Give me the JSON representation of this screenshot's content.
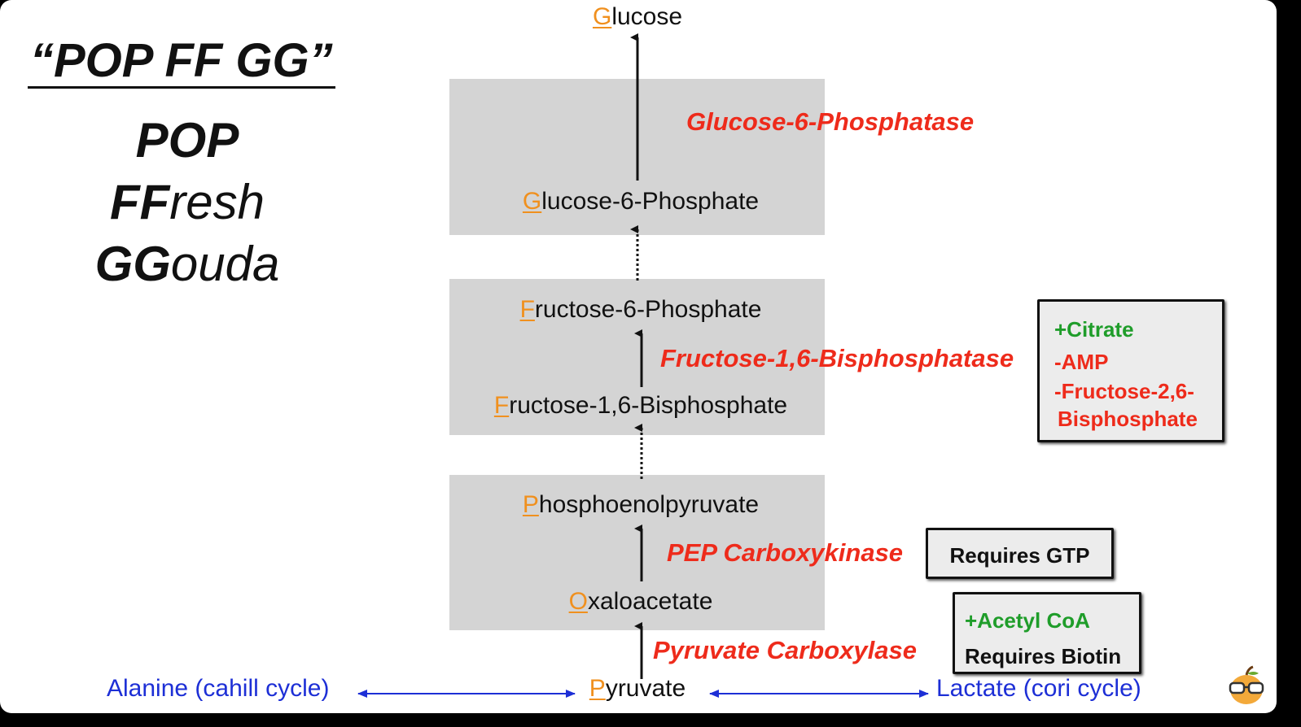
{
  "mnemonic": {
    "title": "“POP FF GG”",
    "lines": [
      {
        "bold": "POP",
        "rest": ""
      },
      {
        "bold": "FF",
        "rest": "resh"
      },
      {
        "bold": "GG",
        "rest": "ouda"
      }
    ]
  },
  "metabolites": {
    "glucose": {
      "first": "G",
      "rest": "lucose"
    },
    "g6p": {
      "first": "G",
      "rest": "lucose-6-Phosphate"
    },
    "f6p": {
      "first": "F",
      "rest": "ructose-6-Phosphate"
    },
    "f16bp": {
      "first": "F",
      "rest": "ructose-1,6-Bisphosphate"
    },
    "pep": {
      "first": "P",
      "rest": "hosphoenolpyruvate"
    },
    "oaa": {
      "first": "O",
      "rest": "xaloacetate"
    },
    "pyruvate": {
      "first": "P",
      "rest": "yruvate"
    }
  },
  "enzymes": {
    "g6pase": "Glucose-6-Phosphatase",
    "fbpase": "Fructose-1,6-Bisphosphatase",
    "pepck": "PEP Carboxykinase",
    "pc": "Pyruvate Carboxylase"
  },
  "sources": {
    "alanine": "Alanine (cahill cycle)",
    "lactate": "Lactate (cori cycle)"
  },
  "notes": {
    "fbpase": [
      "+Citrate",
      "-AMP",
      "-Fructose-2,6-",
      "Bisphosphate"
    ],
    "pepck": "Requires GTP",
    "pc": [
      "+Acetyl CoA",
      "Requires Biotin"
    ]
  },
  "colors": {
    "enzyme": "#ee2b1b",
    "first_letter": "#f0901e",
    "source": "#1d2fd6",
    "activator": "#1f9d2a",
    "box": "#d4d4d4"
  }
}
